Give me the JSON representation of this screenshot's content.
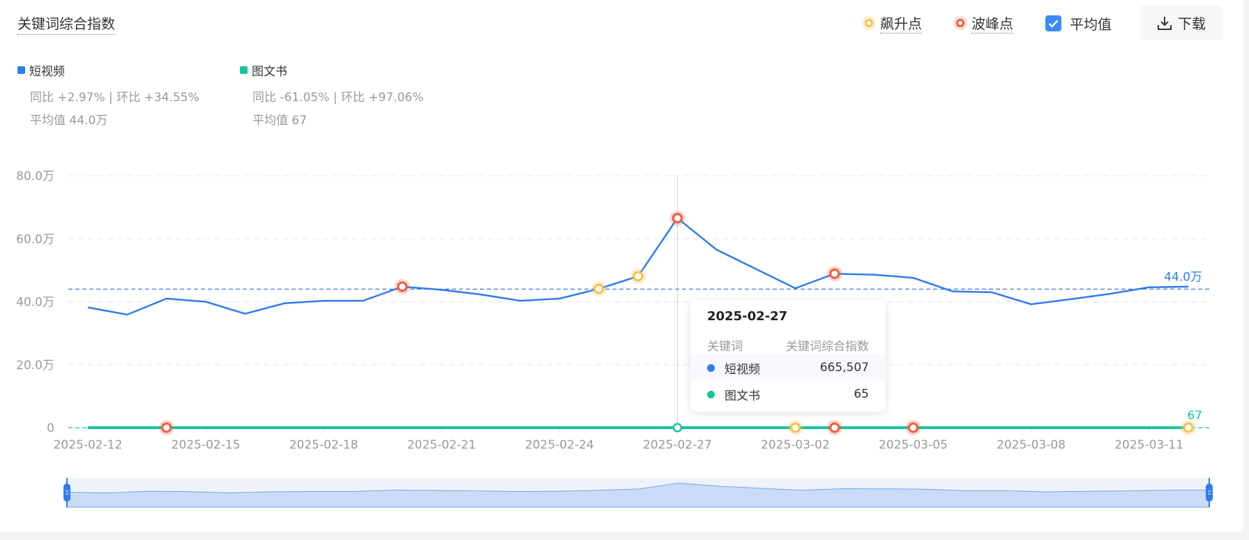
{
  "title": "关键词综合指数",
  "legend": {
    "surge_label": "飙升点",
    "peak_label": "波峰点",
    "average_label": "平均值",
    "average_checked": true,
    "download_label": "下载"
  },
  "series_info": [
    {
      "name": "短视频",
      "color": "#2f7cf0",
      "compare": "同比 +2.97% | 环比 +34.55%",
      "average": "平均值 44.0万"
    },
    {
      "name": "图文书",
      "color": "#14c59d",
      "compare": "同比 -61.05% | 环比 +97.06%",
      "average": "平均值 67"
    }
  ],
  "tooltip": {
    "date": "2025-02-27",
    "col1": "关键词",
    "col2": "关键词综合指数",
    "rows": [
      {
        "name": "短视频",
        "value": "665,507"
      },
      {
        "name": "图文书",
        "value": "65"
      }
    ]
  },
  "colors": {
    "surge": "#f7c14a",
    "peak": "#ef5b3b",
    "grid": "#e5e6eb",
    "axis_text": "#999999"
  },
  "chart_data": {
    "type": "line",
    "x": [
      "2025-02-12",
      "2025-02-13",
      "2025-02-14",
      "2025-02-15",
      "2025-02-16",
      "2025-02-17",
      "2025-02-18",
      "2025-02-19",
      "2025-02-20",
      "2025-02-21",
      "2025-02-22",
      "2025-02-23",
      "2025-02-24",
      "2025-02-25",
      "2025-02-26",
      "2025-02-27",
      "2025-02-28",
      "2025-03-01",
      "2025-03-02",
      "2025-03-03",
      "2025-03-04",
      "2025-03-05",
      "2025-03-06",
      "2025-03-07",
      "2025-03-08",
      "2025-03-09",
      "2025-03-10",
      "2025-03-11",
      "2025-03-12"
    ],
    "x_ticks": [
      "2025-02-12",
      "2025-02-15",
      "2025-02-18",
      "2025-02-21",
      "2025-02-24",
      "2025-02-27",
      "2025-03-02",
      "2025-03-05",
      "2025-03-08",
      "2025-03-11"
    ],
    "y_ticks": [
      "0",
      "20.0万",
      "40.0万",
      "60.0万",
      "80.0万"
    ],
    "ylim": [
      0,
      800000
    ],
    "grid": true,
    "series": [
      {
        "name": "短视频",
        "values": [
          382000,
          359000,
          410000,
          400000,
          362000,
          395000,
          403000,
          403000,
          448000,
          438000,
          423000,
          403000,
          410000,
          441000,
          481000,
          665507,
          565000,
          504000,
          443000,
          489000,
          486000,
          476000,
          433000,
          430000,
          392000,
          408000,
          425000,
          446000,
          448000
        ],
        "average": 440000,
        "average_label": "44.0万",
        "surge_points": [
          "2025-02-25",
          "2025-02-26"
        ],
        "peak_points": [
          "2025-02-20",
          "2025-02-27",
          "2025-03-03"
        ]
      },
      {
        "name": "图文书",
        "values": [
          60,
          62,
          90,
          64,
          61,
          63,
          66,
          62,
          64,
          63,
          65,
          62,
          61,
          64,
          66,
          65,
          63,
          64,
          80,
          88,
          66,
          92,
          64,
          62,
          63,
          61,
          64,
          66,
          82
        ],
        "average": 67,
        "average_label": "67",
        "surge_points": [
          "2025-03-02",
          "2025-03-12"
        ],
        "peak_points": [
          "2025-02-14",
          "2025-03-03",
          "2025-03-05"
        ]
      }
    ],
    "hover_date": "2025-02-27"
  }
}
